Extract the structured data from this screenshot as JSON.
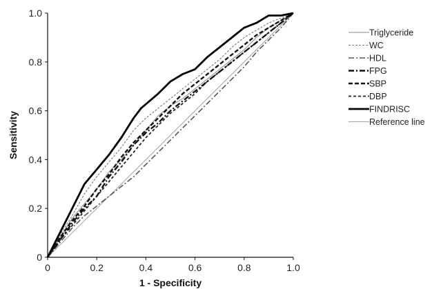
{
  "chart_data": {
    "type": "line",
    "title": "",
    "xlabel": "1 - Specificity",
    "ylabel": "Sensitivity",
    "xlim": [
      0,
      1
    ],
    "ylim": [
      0,
      1
    ],
    "x_ticks": [
      "0",
      "0.2",
      "0.4",
      "0.6",
      "0.8",
      "1.0"
    ],
    "y_ticks": [
      "0",
      "0.2",
      "0.4",
      "0.6",
      "0.8",
      "1.0"
    ],
    "grid": false,
    "legend_position": "right",
    "series": [
      {
        "name": "Triglyceride",
        "color": "#8a8a8a",
        "style": "solid-thin",
        "points": [
          [
            0,
            0
          ],
          [
            0.05,
            0.08
          ],
          [
            0.1,
            0.16
          ],
          [
            0.15,
            0.22
          ],
          [
            0.2,
            0.28
          ],
          [
            0.25,
            0.35
          ],
          [
            0.3,
            0.4
          ],
          [
            0.35,
            0.46
          ],
          [
            0.4,
            0.52
          ],
          [
            0.45,
            0.58
          ],
          [
            0.5,
            0.62
          ],
          [
            0.55,
            0.65
          ],
          [
            0.6,
            0.69
          ],
          [
            0.65,
            0.73
          ],
          [
            0.7,
            0.77
          ],
          [
            0.75,
            0.81
          ],
          [
            0.8,
            0.85
          ],
          [
            0.85,
            0.9
          ],
          [
            0.9,
            0.94
          ],
          [
            0.95,
            0.97
          ],
          [
            1,
            1
          ]
        ]
      },
      {
        "name": "WC",
        "color": "#777777",
        "style": "dotted",
        "points": [
          [
            0,
            0
          ],
          [
            0.05,
            0.09
          ],
          [
            0.1,
            0.17
          ],
          [
            0.15,
            0.26
          ],
          [
            0.2,
            0.33
          ],
          [
            0.25,
            0.39
          ],
          [
            0.3,
            0.45
          ],
          [
            0.35,
            0.52
          ],
          [
            0.4,
            0.57
          ],
          [
            0.45,
            0.61
          ],
          [
            0.5,
            0.65
          ],
          [
            0.55,
            0.69
          ],
          [
            0.6,
            0.73
          ],
          [
            0.65,
            0.77
          ],
          [
            0.7,
            0.81
          ],
          [
            0.75,
            0.86
          ],
          [
            0.8,
            0.9
          ],
          [
            0.85,
            0.93
          ],
          [
            0.9,
            0.96
          ],
          [
            0.95,
            0.98
          ],
          [
            1,
            1
          ]
        ]
      },
      {
        "name": "HDL",
        "color": "#555555",
        "style": "dash-dot-gray",
        "points": [
          [
            0,
            0
          ],
          [
            0.05,
            0.06
          ],
          [
            0.1,
            0.12
          ],
          [
            0.15,
            0.17
          ],
          [
            0.2,
            0.21
          ],
          [
            0.25,
            0.25
          ],
          [
            0.3,
            0.29
          ],
          [
            0.35,
            0.33
          ],
          [
            0.4,
            0.38
          ],
          [
            0.45,
            0.43
          ],
          [
            0.5,
            0.48
          ],
          [
            0.55,
            0.53
          ],
          [
            0.6,
            0.58
          ],
          [
            0.65,
            0.63
          ],
          [
            0.7,
            0.68
          ],
          [
            0.75,
            0.73
          ],
          [
            0.8,
            0.78
          ],
          [
            0.85,
            0.84
          ],
          [
            0.9,
            0.89
          ],
          [
            0.95,
            0.94
          ],
          [
            1,
            1
          ]
        ]
      },
      {
        "name": "FPG",
        "color": "#111111",
        "style": "dash-dot-bold",
        "points": [
          [
            0,
            0
          ],
          [
            0.05,
            0.07
          ],
          [
            0.1,
            0.14
          ],
          [
            0.15,
            0.2
          ],
          [
            0.2,
            0.25
          ],
          [
            0.25,
            0.33
          ],
          [
            0.3,
            0.39
          ],
          [
            0.35,
            0.46
          ],
          [
            0.4,
            0.51
          ],
          [
            0.45,
            0.55
          ],
          [
            0.5,
            0.6
          ],
          [
            0.55,
            0.64
          ],
          [
            0.6,
            0.68
          ],
          [
            0.65,
            0.72
          ],
          [
            0.7,
            0.76
          ],
          [
            0.75,
            0.8
          ],
          [
            0.8,
            0.84
          ],
          [
            0.85,
            0.88
          ],
          [
            0.9,
            0.92
          ],
          [
            0.95,
            0.96
          ],
          [
            1,
            1
          ]
        ]
      },
      {
        "name": "SBP",
        "color": "#111111",
        "style": "dashed-bold",
        "points": [
          [
            0,
            0
          ],
          [
            0.05,
            0.08
          ],
          [
            0.1,
            0.15
          ],
          [
            0.15,
            0.21
          ],
          [
            0.2,
            0.28
          ],
          [
            0.25,
            0.34
          ],
          [
            0.3,
            0.41
          ],
          [
            0.35,
            0.47
          ],
          [
            0.4,
            0.52
          ],
          [
            0.45,
            0.57
          ],
          [
            0.5,
            0.62
          ],
          [
            0.55,
            0.67
          ],
          [
            0.6,
            0.71
          ],
          [
            0.65,
            0.75
          ],
          [
            0.7,
            0.79
          ],
          [
            0.75,
            0.83
          ],
          [
            0.8,
            0.87
          ],
          [
            0.85,
            0.91
          ],
          [
            0.9,
            0.94
          ],
          [
            0.95,
            0.97
          ],
          [
            1,
            1
          ]
        ]
      },
      {
        "name": "DBP",
        "color": "#222222",
        "style": "dashed",
        "points": [
          [
            0,
            0
          ],
          [
            0.05,
            0.07
          ],
          [
            0.1,
            0.13
          ],
          [
            0.15,
            0.19
          ],
          [
            0.2,
            0.25
          ],
          [
            0.25,
            0.31
          ],
          [
            0.3,
            0.37
          ],
          [
            0.35,
            0.43
          ],
          [
            0.4,
            0.49
          ],
          [
            0.45,
            0.54
          ],
          [
            0.5,
            0.59
          ],
          [
            0.55,
            0.63
          ],
          [
            0.6,
            0.67
          ],
          [
            0.65,
            0.72
          ],
          [
            0.7,
            0.76
          ],
          [
            0.75,
            0.8
          ],
          [
            0.8,
            0.84
          ],
          [
            0.85,
            0.88
          ],
          [
            0.9,
            0.92
          ],
          [
            0.95,
            0.96
          ],
          [
            1,
            1
          ]
        ]
      },
      {
        "name": "FINDRISC",
        "color": "#000000",
        "style": "solid-bold",
        "points": [
          [
            0,
            0
          ],
          [
            0.05,
            0.1
          ],
          [
            0.1,
            0.2
          ],
          [
            0.15,
            0.3
          ],
          [
            0.2,
            0.36
          ],
          [
            0.25,
            0.42
          ],
          [
            0.3,
            0.49
          ],
          [
            0.35,
            0.57
          ],
          [
            0.38,
            0.61
          ],
          [
            0.45,
            0.67
          ],
          [
            0.5,
            0.72
          ],
          [
            0.55,
            0.75
          ],
          [
            0.6,
            0.77
          ],
          [
            0.65,
            0.82
          ],
          [
            0.7,
            0.86
          ],
          [
            0.75,
            0.9
          ],
          [
            0.8,
            0.94
          ],
          [
            0.85,
            0.96
          ],
          [
            0.9,
            0.99
          ],
          [
            0.95,
            0.99
          ],
          [
            1,
            1
          ]
        ]
      },
      {
        "name": "Reference line",
        "color": "#a0a0a0",
        "style": "solid-thin",
        "points": [
          [
            0,
            0
          ],
          [
            1,
            1
          ]
        ]
      }
    ]
  }
}
